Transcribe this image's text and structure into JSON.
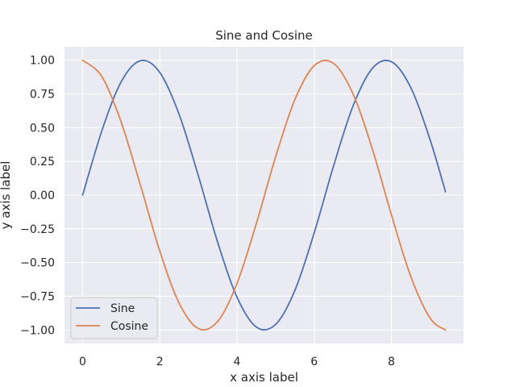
{
  "chart_data": {
    "type": "line",
    "title": "Sine and Cosine",
    "xlabel": "x axis label",
    "ylabel": "y axis label",
    "xlim": [
      -0.47,
      9.87
    ],
    "ylim": [
      -1.1,
      1.1
    ],
    "xticks": [
      0,
      2,
      4,
      6,
      8
    ],
    "xtick_labels": [
      "0",
      "2",
      "4",
      "6",
      "8"
    ],
    "yticks": [
      -1.0,
      -0.75,
      -0.5,
      -0.25,
      0.0,
      0.25,
      0.5,
      0.75,
      1.0
    ],
    "ytick_labels": [
      "−1.00",
      "−0.75",
      "−0.50",
      "−0.25",
      "0.00",
      "0.25",
      "0.50",
      "0.75",
      "1.00"
    ],
    "grid": true,
    "legend_position": "lower-left",
    "x": [
      0.0,
      0.5,
      1.0,
      1.5,
      2.0,
      2.5,
      3.0,
      3.5,
      4.0,
      4.5,
      5.0,
      5.5,
      6.0,
      6.5,
      7.0,
      7.5,
      8.0,
      8.5,
      9.0,
      9.4
    ],
    "series": [
      {
        "name": "Sine",
        "color": "#4c72b0",
        "values": [
          0.0,
          0.479,
          0.841,
          0.997,
          0.909,
          0.598,
          0.141,
          -0.351,
          -0.757,
          -0.978,
          -0.959,
          -0.706,
          -0.279,
          0.215,
          0.657,
          0.938,
          0.989,
          0.798,
          0.412,
          0.025
        ]
      },
      {
        "name": "Cosine",
        "color": "#dd8452",
        "values": [
          1.0,
          0.878,
          0.54,
          0.071,
          -0.416,
          -0.801,
          -0.99,
          -0.936,
          -0.654,
          -0.211,
          0.284,
          0.709,
          0.96,
          0.977,
          0.754,
          0.347,
          -0.146,
          -0.602,
          -0.911,
          -1.0
        ]
      }
    ],
    "colors": {
      "plot_background": "#eaeaf2",
      "grid": "#ffffff",
      "text": "#262626"
    }
  }
}
